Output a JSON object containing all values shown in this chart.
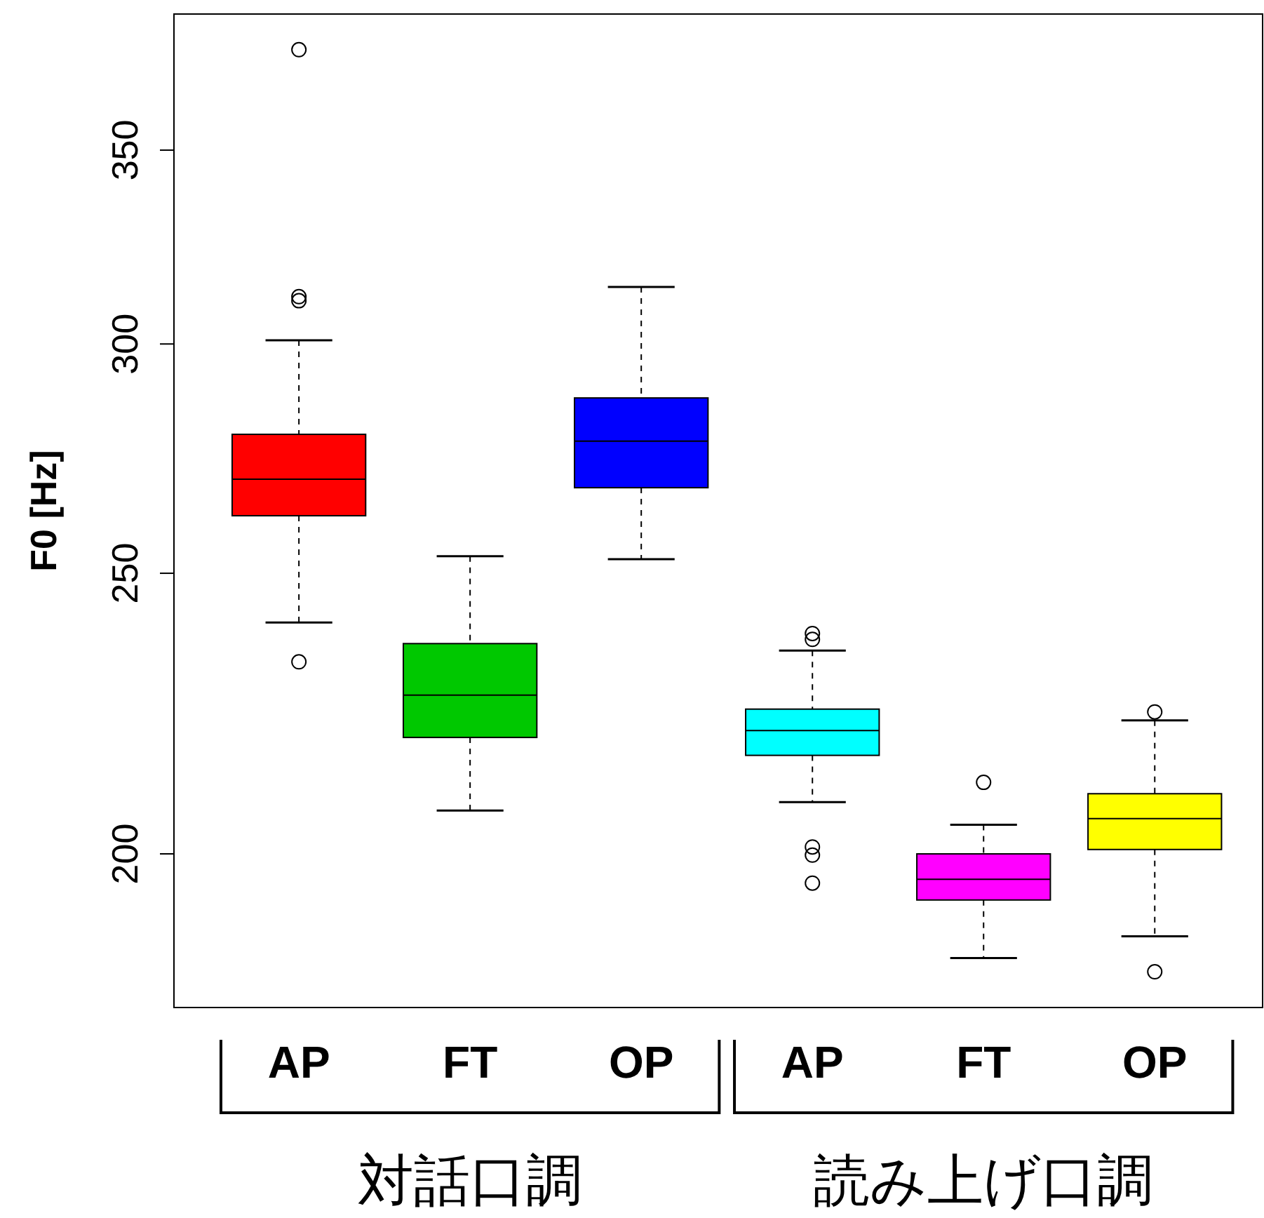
{
  "chart_data": {
    "type": "box",
    "ylabel": "F0 [Hz]",
    "log": true,
    "ylim": [
      177,
      390
    ],
    "yticks": [
      200,
      250,
      300,
      350
    ],
    "grid": false,
    "categories": [
      "AP",
      "FT",
      "OP",
      "AP",
      "FT",
      "OP"
    ],
    "colors": [
      "#ff0000",
      "#00c800",
      "#0000ff",
      "#00ffff",
      "#ff00ff",
      "#ffff00"
    ],
    "boxes": [
      {
        "low": 240.4,
        "q1": 261.7,
        "median": 269.4,
        "q3": 279.2,
        "high": 300.9,
        "outliers": [
          379.1,
          311.5,
          310.5,
          233.0
        ]
      },
      {
        "low": 207.0,
        "q1": 219.4,
        "median": 226.9,
        "q3": 236.4,
        "high": 253.4
      },
      {
        "low": 252.8,
        "q1": 267.6,
        "median": 277.7,
        "q3": 287.4,
        "high": 313.9
      },
      {
        "low": 208.4,
        "q1": 216.3,
        "median": 220.6,
        "q3": 224.4,
        "high": 235.1,
        "outliers": [
          238.3,
          237.2,
          201.1,
          199.8,
          195.4
        ]
      },
      {
        "low": 184.1,
        "q1": 192.8,
        "median": 196.0,
        "q3": 200.0,
        "high": 204.7,
        "outliers": [
          211.7
        ]
      },
      {
        "low": 187.3,
        "q1": 200.7,
        "median": 205.7,
        "q3": 209.8,
        "high": 222.4,
        "outliers": [
          223.9,
          182.1
        ]
      }
    ],
    "annotations": [
      "対話口調",
      "読み上げ口調"
    ]
  }
}
